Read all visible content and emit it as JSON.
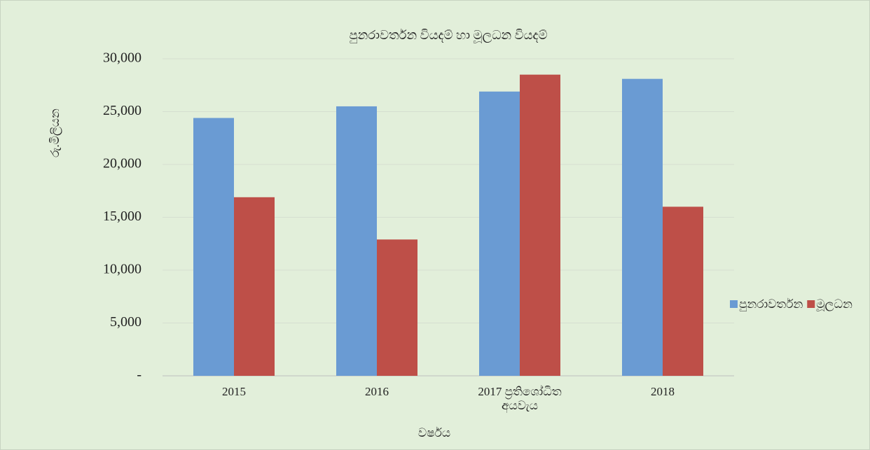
{
  "chart_data": {
    "type": "bar",
    "title": "පුනරාවර්තන වියදම් හා මූලධන වියදම්",
    "x_label": "වර්ෂය",
    "y_label": "රු.මිලියන",
    "categories": [
      "2015",
      "2016",
      "2017 ප්‍රතිශෝධිත අයවැය",
      "2018"
    ],
    "series": [
      {
        "name": "පුනරාවර්තන",
        "color": "#6a9bd3",
        "values": [
          24400,
          25500,
          26900,
          28100
        ]
      },
      {
        "name": "මූලධන",
        "color": "#be4f48",
        "values": [
          16900,
          12900,
          28500,
          16000
        ]
      }
    ],
    "ylim": [
      0,
      30000
    ],
    "yticks": [
      {
        "value": 0,
        "label": "-"
      },
      {
        "value": 5000,
        "label": "5,000"
      },
      {
        "value": 10000,
        "label": "10,000"
      },
      {
        "value": 15000,
        "label": "15,000"
      },
      {
        "value": 20000,
        "label": "20,000"
      },
      {
        "value": 25000,
        "label": "25,000"
      },
      {
        "value": 30000,
        "label": "30,000"
      }
    ],
    "grid": true,
    "legend": "right"
  }
}
